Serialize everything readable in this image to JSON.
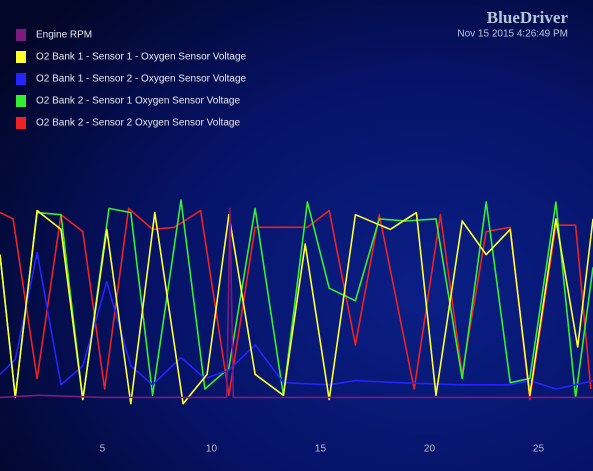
{
  "chart_data": {
    "type": "line",
    "logo": "BlueDriver",
    "timestamp": "Nov 15 2015 4:26:49 PM",
    "xlim": [
      0.3,
      27.5
    ],
    "xticks": [
      5,
      10,
      15,
      20,
      25
    ],
    "ylim": [
      0,
      100
    ],
    "series": [
      {
        "name": "Engine RPM",
        "color": "#7d1a7d",
        "x": [
          0.3,
          2.1,
          5.0,
          10.7,
          10.85,
          11.0,
          15.0,
          27.5
        ],
        "values": [
          6,
          7,
          6,
          6,
          96,
          6,
          6,
          6
        ]
      },
      {
        "name": "O2 Bank 1 - Sensor 1 - Oxygen Sensor Voltage",
        "color": "#ffff30",
        "x": [
          0.3,
          1.0,
          2.0,
          3.1,
          4.1,
          5.2,
          6.3,
          7.4,
          8.7,
          9.8,
          10.8,
          12.0,
          13.3,
          14.3,
          15.4,
          16.6,
          18.2,
          19.4,
          20.3,
          21.5,
          22.6,
          23.7,
          24.6,
          25.8,
          26.8,
          27.5
        ],
        "values": [
          74,
          6,
          95,
          86,
          5,
          86,
          3,
          94,
          3,
          17,
          93,
          17,
          7,
          79,
          5,
          93,
          86,
          94,
          7,
          90,
          74,
          86,
          7,
          91,
          30,
          91
        ]
      },
      {
        "name": "O2 Bank 1 - Sensor 2 - Oxygen Sensor Voltage",
        "color": "#2424ff",
        "x": [
          0.3,
          1.0,
          2.0,
          3.1,
          4.1,
          5.2,
          6.3,
          7.3,
          8.6,
          9.7,
          10.8,
          12.0,
          13.3,
          15.4,
          16.6,
          18.6,
          21.4,
          23.7,
          24.6,
          25.8,
          26.7,
          27.5
        ],
        "values": [
          17,
          24,
          75,
          12,
          21,
          61,
          21,
          12,
          25,
          15,
          19,
          31,
          13,
          12,
          14,
          13,
          12,
          12,
          14,
          10,
          12,
          14
        ]
      },
      {
        "name": "O2 Bank 2 - Sensor 1 Oxygen Sensor Voltage",
        "color": "#33ee33",
        "x": [
          0.3,
          1.0,
          2.0,
          3.1,
          4.1,
          5.3,
          6.3,
          7.3,
          8.6,
          9.7,
          10.8,
          12.0,
          13.3,
          14.4,
          15.4,
          16.6,
          17.7,
          18.9,
          20.3,
          21.5,
          22.6,
          23.7,
          24.6,
          25.8,
          26.7,
          27.5
        ],
        "values": [
          74,
          6,
          94,
          93,
          5,
          96,
          94,
          7,
          100,
          10,
          20,
          96,
          7,
          99,
          58,
          52,
          91,
          90,
          91,
          15,
          99,
          13,
          15,
          99,
          6,
          68
        ]
      },
      {
        "name": "O2 Bank 2 - Sensor 2 Oxygen Sensor Voltage",
        "color": "#ee2222",
        "x": [
          0.3,
          0.9,
          2.0,
          3.1,
          4.1,
          5.1,
          6.2,
          7.3,
          8.3,
          9.5,
          10.8,
          12.0,
          13.3,
          14.4,
          15.4,
          16.6,
          17.7,
          19.3,
          20.5,
          21.5,
          22.6,
          23.7,
          24.6,
          25.8,
          26.7,
          27.4
        ],
        "values": [
          94,
          91,
          15,
          93,
          85,
          10,
          96,
          86,
          87,
          95,
          7,
          87,
          87,
          87,
          95,
          31,
          93,
          10,
          93,
          17,
          85,
          87,
          5,
          88,
          88,
          10
        ]
      }
    ]
  }
}
